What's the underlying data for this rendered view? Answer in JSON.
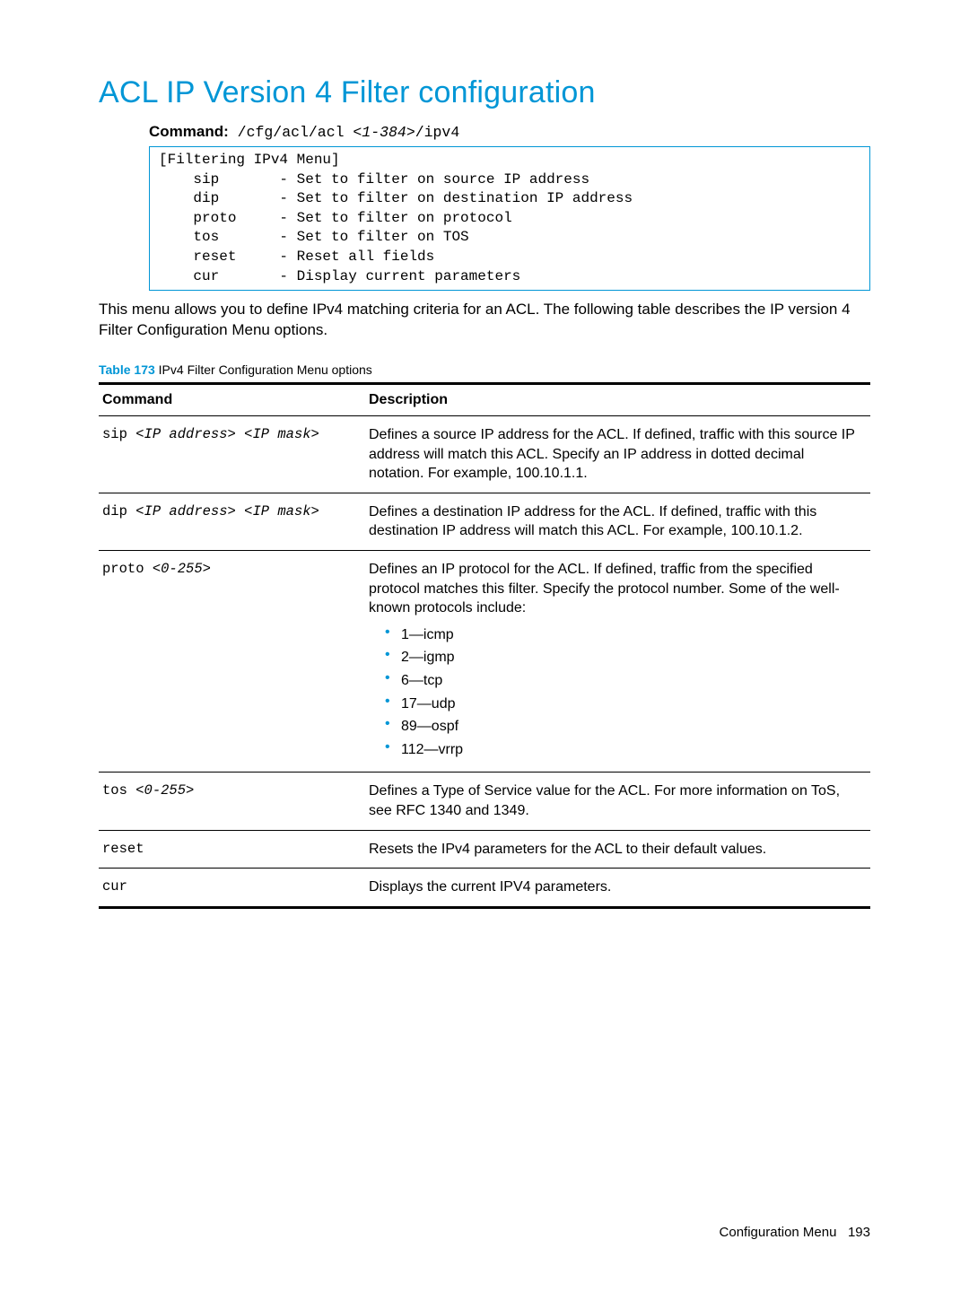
{
  "title": "ACL IP Version 4 Filter configuration",
  "command_line": {
    "label": "Command:",
    "prefix": " /cfg/acl/acl ",
    "arg": "<1-384>",
    "suffix": "/ipv4"
  },
  "menu_box": {
    "header": "[Filtering IPv4 Menu]",
    "rows": [
      {
        "cmd": "sip",
        "desc": "- Set to filter on source IP address"
      },
      {
        "cmd": "dip",
        "desc": "- Set to filter on destination IP address"
      },
      {
        "cmd": "proto",
        "desc": "- Set to filter on protocol"
      },
      {
        "cmd": "tos",
        "desc": "- Set to filter on TOS"
      },
      {
        "cmd": "reset",
        "desc": "- Reset all fields"
      },
      {
        "cmd": "cur",
        "desc": "- Display current parameters"
      }
    ]
  },
  "paragraph": "This menu allows you to define IPv4 matching criteria for an ACL. The following table describes the IP version 4 Filter Configuration Menu options.",
  "table_caption": {
    "label": "Table 173",
    "text": " IPv4 Filter Configuration Menu options"
  },
  "table": {
    "head": {
      "c1": "Command",
      "c2": "Description"
    },
    "rows": {
      "sip": {
        "cmd_prefix": "sip ",
        "cmd_arg": "<IP address> <IP mask>",
        "desc": "Defines a source IP address for the ACL. If defined, traffic with this source IP address will match this ACL. Specify an IP address in dotted decimal notation. For example, 100.10.1.1."
      },
      "dip": {
        "cmd_prefix": "dip ",
        "cmd_arg": "<IP address> <IP mask>",
        "desc": "Defines a destination IP address for the ACL. If defined, traffic with this destination IP address will match this ACL. For example, 100.10.1.2."
      },
      "proto": {
        "cmd_prefix": "proto ",
        "cmd_arg": "<0-255>",
        "desc": "Defines an IP protocol for the ACL. If defined, traffic from the specified protocol matches this filter. Specify the protocol number. Some of the well-known protocols include:",
        "list": [
          "1—icmp",
          "2—igmp",
          "6—tcp",
          "17—udp",
          "89—ospf",
          "112—vrrp"
        ]
      },
      "tos": {
        "cmd_prefix": "tos ",
        "cmd_arg": "<0-255>",
        "desc": "Defines a Type of Service value for the ACL. For more information on ToS, see RFC 1340 and 1349."
      },
      "reset": {
        "cmd_prefix": "reset",
        "cmd_arg": "",
        "desc": "Resets the IPv4 parameters for the ACL to their default values."
      },
      "cur": {
        "cmd_prefix": "cur",
        "cmd_arg": "",
        "desc": "Displays the current IPV4 parameters."
      }
    }
  },
  "footer": {
    "section": "Configuration Menu",
    "page": "193"
  },
  "colors": {
    "accent": "#0096d6",
    "text": "#000000",
    "background": "#ffffff"
  }
}
